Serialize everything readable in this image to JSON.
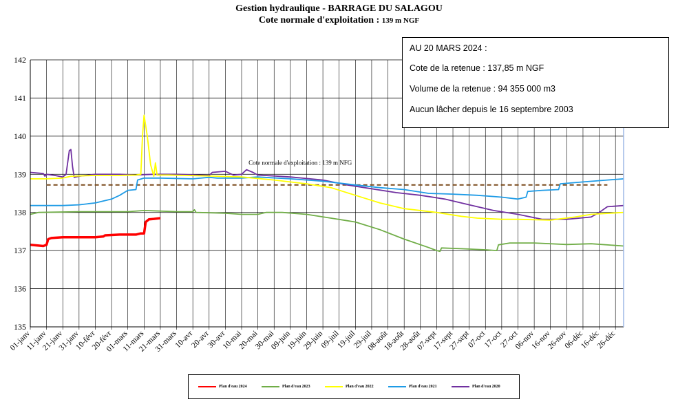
{
  "header": {
    "title": "Gestion hydraulique - BARRAGE DU SALAGOU",
    "subtitle_prefix": "Cote normale d'exploitation : ",
    "subtitle_value": "139 m NGF"
  },
  "info": {
    "line1": "AU 20 MARS 2024 :",
    "line2": "Cote de la retenue : 137,85 m NGF",
    "line3": "Volume de la retenue : 94 355 000 m3",
    "line4": "Aucun lâcher depuis le 16 septembre 2003"
  },
  "chart_data": {
    "type": "line",
    "ylim": [
      135,
      142
    ],
    "xlim": [
      0,
      365
    ],
    "yticks": [
      135,
      136,
      137,
      138,
      139,
      140,
      141,
      142
    ],
    "xtick_labels": [
      "01-janv",
      "11-janv",
      "21-janv",
      "31-janv",
      "10-févr",
      "20-févr",
      "01-mars",
      "11-mars",
      "21-mars",
      "31-mars",
      "10-avr",
      "20-avr",
      "30-avr",
      "10-mai",
      "20-mai",
      "30-mai",
      "09-juin",
      "19-juin",
      "29-juin",
      "09-juil",
      "19-juil",
      "29-juil",
      "08-août",
      "18-août",
      "28-août",
      "07-sept",
      "17-sept",
      "27-sept",
      "07-oct",
      "17-oct",
      "27-oct",
      "06-nov",
      "16-nov",
      "26-nov",
      "06-déc",
      "16-déc",
      "26-déc"
    ],
    "reference_line": {
      "value": 138.72,
      "x_start": 10,
      "x_end": 355,
      "label": "Cote normale d'exploitation : 139 m NFG",
      "color": "#7a4a1c"
    },
    "series": [
      {
        "name": "Plan d'eau 2024",
        "color": "#ff0000",
        "points": [
          [
            0,
            137.15
          ],
          [
            8,
            137.12
          ],
          [
            10,
            137.15
          ],
          [
            11,
            137.3
          ],
          [
            13,
            137.33
          ],
          [
            20,
            137.35
          ],
          [
            40,
            137.35
          ],
          [
            45,
            137.37
          ],
          [
            46,
            137.4
          ],
          [
            55,
            137.42
          ],
          [
            65,
            137.42
          ],
          [
            68,
            137.45
          ],
          [
            70,
            137.45
          ],
          [
            70.5,
            137.6
          ],
          [
            71,
            137.75
          ],
          [
            73,
            137.82
          ],
          [
            76,
            137.83
          ],
          [
            80,
            137.85
          ]
        ]
      },
      {
        "name": "Plan d'eau 2023",
        "color": "#70ad47",
        "points": [
          [
            0,
            137.95
          ],
          [
            5,
            138.0
          ],
          [
            30,
            138.02
          ],
          [
            60,
            138.02
          ],
          [
            70,
            138.05
          ],
          [
            90,
            138.02
          ],
          [
            100,
            138.02
          ],
          [
            101,
            138.07
          ],
          [
            102,
            138.0
          ],
          [
            120,
            137.98
          ],
          [
            130,
            137.95
          ],
          [
            140,
            137.95
          ],
          [
            145,
            138.0
          ],
          [
            155,
            138.0
          ],
          [
            170,
            137.95
          ],
          [
            185,
            137.85
          ],
          [
            200,
            137.75
          ],
          [
            215,
            137.55
          ],
          [
            230,
            137.3
          ],
          [
            245,
            137.08
          ],
          [
            250,
            137.0
          ],
          [
            252,
            136.98
          ],
          [
            253,
            137.07
          ],
          [
            265,
            137.05
          ],
          [
            280,
            137.02
          ],
          [
            287,
            137.0
          ],
          [
            288,
            137.15
          ],
          [
            295,
            137.2
          ],
          [
            310,
            137.2
          ],
          [
            330,
            137.16
          ],
          [
            345,
            137.18
          ],
          [
            365,
            137.12
          ]
        ]
      },
      {
        "name": "Plan d'eau 2022",
        "color": "#ffff00",
        "points": [
          [
            0,
            138.88
          ],
          [
            10,
            138.88
          ],
          [
            20,
            138.9
          ],
          [
            25,
            138.95
          ],
          [
            40,
            138.97
          ],
          [
            55,
            138.97
          ],
          [
            65,
            138.98
          ],
          [
            68,
            139.0
          ],
          [
            69,
            140.0
          ],
          [
            70,
            140.55
          ],
          [
            72,
            140.0
          ],
          [
            74,
            139.25
          ],
          [
            76,
            138.95
          ],
          [
            77,
            139.3
          ],
          [
            78,
            138.98
          ],
          [
            85,
            138.98
          ],
          [
            95,
            138.97
          ],
          [
            115,
            138.95
          ],
          [
            130,
            138.93
          ],
          [
            150,
            138.85
          ],
          [
            170,
            138.75
          ],
          [
            185,
            138.65
          ],
          [
            200,
            138.45
          ],
          [
            215,
            138.25
          ],
          [
            230,
            138.1
          ],
          [
            250,
            138.0
          ],
          [
            265,
            137.9
          ],
          [
            275,
            137.85
          ],
          [
            290,
            137.82
          ],
          [
            300,
            137.82
          ],
          [
            320,
            137.8
          ],
          [
            335,
            137.88
          ],
          [
            345,
            137.95
          ],
          [
            365,
            138.0
          ]
        ]
      },
      {
        "name": "Plan d'eau 2021",
        "color": "#1e9be6",
        "points": [
          [
            0,
            138.18
          ],
          [
            20,
            138.18
          ],
          [
            30,
            138.2
          ],
          [
            40,
            138.25
          ],
          [
            50,
            138.35
          ],
          [
            55,
            138.45
          ],
          [
            60,
            138.58
          ],
          [
            65,
            138.6
          ],
          [
            66,
            138.85
          ],
          [
            70,
            138.9
          ],
          [
            80,
            138.9
          ],
          [
            100,
            138.88
          ],
          [
            110,
            138.92
          ],
          [
            115,
            138.9
          ],
          [
            130,
            138.9
          ],
          [
            140,
            138.93
          ],
          [
            160,
            138.88
          ],
          [
            180,
            138.82
          ],
          [
            200,
            138.72
          ],
          [
            215,
            138.65
          ],
          [
            230,
            138.6
          ],
          [
            245,
            138.5
          ],
          [
            260,
            138.48
          ],
          [
            275,
            138.45
          ],
          [
            290,
            138.4
          ],
          [
            300,
            138.35
          ],
          [
            305,
            138.4
          ],
          [
            306,
            138.55
          ],
          [
            315,
            138.58
          ],
          [
            325,
            138.6
          ],
          [
            326,
            138.75
          ],
          [
            340,
            138.8
          ],
          [
            355,
            138.85
          ],
          [
            365,
            138.88
          ]
        ]
      },
      {
        "name": "Plan d'eau 2020",
        "color": "#7030a0",
        "points": [
          [
            0,
            139.05
          ],
          [
            8,
            139.02
          ],
          [
            9,
            138.95
          ],
          [
            10,
            139.0
          ],
          [
            15,
            138.97
          ],
          [
            20,
            138.93
          ],
          [
            22,
            139.0
          ],
          [
            24,
            139.62
          ],
          [
            25,
            139.65
          ],
          [
            26,
            139.2
          ],
          [
            27,
            138.92
          ],
          [
            30,
            138.95
          ],
          [
            40,
            139.0
          ],
          [
            55,
            139.0
          ],
          [
            65,
            138.98
          ],
          [
            75,
            139.0
          ],
          [
            90,
            139.0
          ],
          [
            110,
            138.97
          ],
          [
            112,
            139.05
          ],
          [
            120,
            139.08
          ],
          [
            125,
            138.98
          ],
          [
            130,
            139.0
          ],
          [
            133,
            139.12
          ],
          [
            137,
            139.05
          ],
          [
            140,
            138.98
          ],
          [
            160,
            138.93
          ],
          [
            180,
            138.85
          ],
          [
            195,
            138.72
          ],
          [
            210,
            138.62
          ],
          [
            225,
            138.52
          ],
          [
            240,
            138.45
          ],
          [
            255,
            138.35
          ],
          [
            270,
            138.2
          ],
          [
            285,
            138.05
          ],
          [
            300,
            137.95
          ],
          [
            315,
            137.82
          ],
          [
            330,
            137.82
          ],
          [
            345,
            137.88
          ],
          [
            350,
            138.0
          ],
          [
            355,
            138.15
          ],
          [
            365,
            138.18
          ]
        ]
      }
    ]
  }
}
